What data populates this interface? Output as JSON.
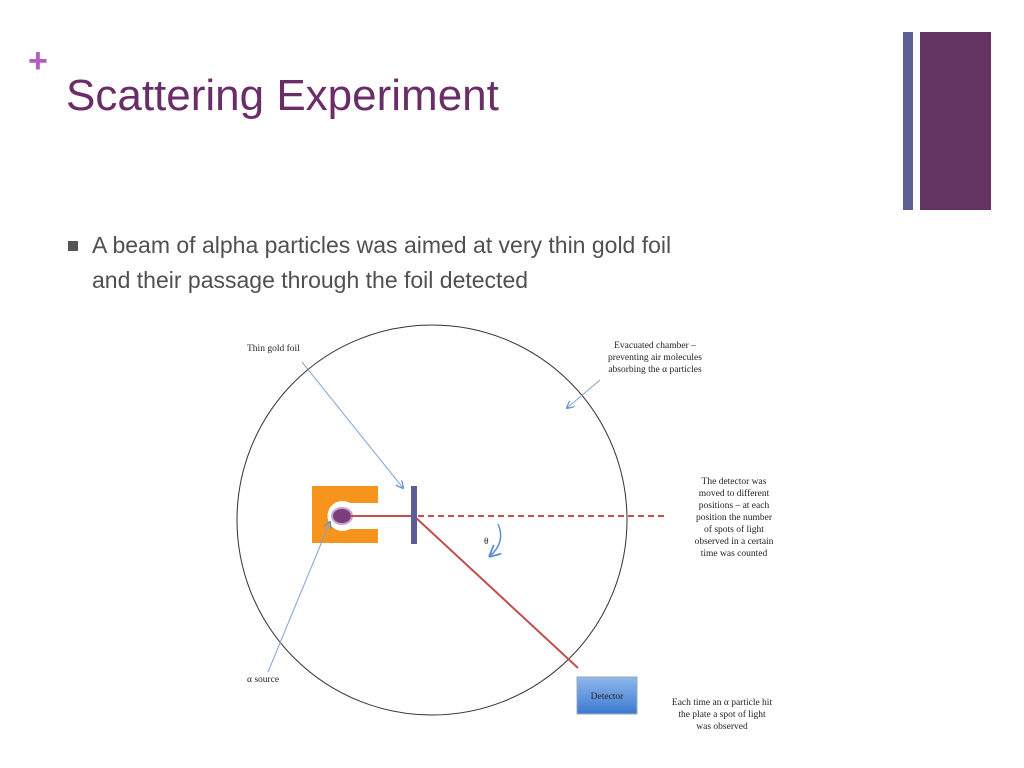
{
  "header": {
    "plus": "+",
    "title": "Scattering Experiment"
  },
  "bullets": [
    [
      "A beam of alpha particles was aimed at very thin gold foil",
      "and their passage through the foil detected"
    ]
  ],
  "diagram": {
    "foil_label": "Thin gold foil",
    "chamber_label": [
      "Evacuated chamber –",
      "preventing air molecules",
      "absorbing the α particles"
    ],
    "detector_note": [
      "The detector was",
      "moved to different",
      "positions – at each",
      "position the number",
      "of spots of light",
      "observed in a certain",
      "time was counted"
    ],
    "angle_label": "θ",
    "source_label": "α source",
    "detector_label": "Detector",
    "hit_note": [
      "Each time an α particle hit",
      "the plate a spot of light",
      "was observed"
    ]
  }
}
